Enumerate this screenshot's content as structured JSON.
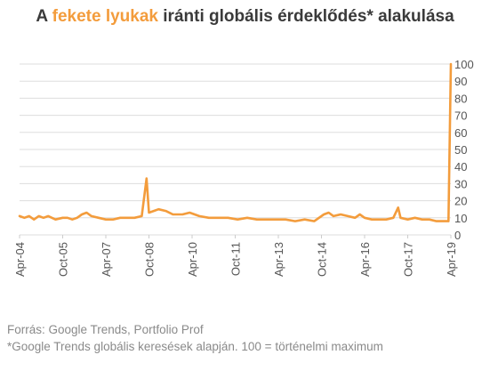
{
  "title": {
    "prefix": "A ",
    "highlight": "fekete lyukak",
    "suffix": " iránti globális érdeklődés* alakulása"
  },
  "footer": {
    "source": "Forrás: Google Trends, Portfolio Prof",
    "note": "*Google Trends globális keresések alapján. 100 = történelmi maximum"
  },
  "colors": {
    "line": "#f39c3c",
    "grid": "#dddddd",
    "text": "#555555"
  },
  "chart_data": {
    "type": "line",
    "title": "A fekete lyukak iránti globális érdeklődés* alakulása",
    "xlabel": "",
    "ylabel": "",
    "ylim": [
      0,
      100
    ],
    "yticks": [
      0,
      10,
      20,
      30,
      40,
      50,
      60,
      70,
      80,
      90,
      100
    ],
    "xlim": [
      "2004-04",
      "2019-04"
    ],
    "xticks": [
      "Apr-04",
      "Oct-05",
      "Apr-07",
      "Oct-08",
      "Apr-10",
      "Oct-11",
      "Apr-13",
      "Oct-14",
      "Apr-16",
      "Oct-17",
      "Apr-19"
    ],
    "grid": "horizontal",
    "legend": "none",
    "series": [
      {
        "points": [
          [
            "2004-04",
            11
          ],
          [
            "2004-06",
            10
          ],
          [
            "2004-08",
            11
          ],
          [
            "2004-10",
            9
          ],
          [
            "2004-12",
            11
          ],
          [
            "2005-02",
            10
          ],
          [
            "2005-04",
            11
          ],
          [
            "2005-07",
            9
          ],
          [
            "2005-10",
            10
          ],
          [
            "2005-12",
            10
          ],
          [
            "2006-02",
            9
          ],
          [
            "2006-04",
            10
          ],
          [
            "2006-06",
            12
          ],
          [
            "2006-08",
            13
          ],
          [
            "2006-10",
            11
          ],
          [
            "2007-01",
            10
          ],
          [
            "2007-04",
            9
          ],
          [
            "2007-07",
            9
          ],
          [
            "2007-10",
            10
          ],
          [
            "2008-01",
            10
          ],
          [
            "2008-04",
            10
          ],
          [
            "2008-07",
            11
          ],
          [
            "2008-09",
            33
          ],
          [
            "2008-10",
            13
          ],
          [
            "2008-12",
            14
          ],
          [
            "2009-02",
            15
          ],
          [
            "2009-05",
            14
          ],
          [
            "2009-08",
            12
          ],
          [
            "2009-12",
            12
          ],
          [
            "2010-03",
            13
          ],
          [
            "2010-07",
            11
          ],
          [
            "2010-11",
            10
          ],
          [
            "2011-03",
            10
          ],
          [
            "2011-07",
            10
          ],
          [
            "2011-11",
            9
          ],
          [
            "2012-03",
            10
          ],
          [
            "2012-07",
            9
          ],
          [
            "2012-11",
            9
          ],
          [
            "2013-03",
            9
          ],
          [
            "2013-07",
            9
          ],
          [
            "2013-11",
            8
          ],
          [
            "2014-03",
            9
          ],
          [
            "2014-07",
            8
          ],
          [
            "2014-11",
            12
          ],
          [
            "2015-01",
            13
          ],
          [
            "2015-03",
            11
          ],
          [
            "2015-06",
            12
          ],
          [
            "2015-09",
            11
          ],
          [
            "2015-12",
            10
          ],
          [
            "2016-02",
            12
          ],
          [
            "2016-04",
            10
          ],
          [
            "2016-07",
            9
          ],
          [
            "2016-10",
            9
          ],
          [
            "2017-01",
            9
          ],
          [
            "2017-04",
            10
          ],
          [
            "2017-06",
            16
          ],
          [
            "2017-07",
            10
          ],
          [
            "2017-10",
            9
          ],
          [
            "2018-01",
            10
          ],
          [
            "2018-04",
            9
          ],
          [
            "2018-07",
            9
          ],
          [
            "2018-10",
            8
          ],
          [
            "2019-01",
            8
          ],
          [
            "2019-03",
            8
          ],
          [
            "2019-04",
            100
          ]
        ]
      }
    ]
  }
}
